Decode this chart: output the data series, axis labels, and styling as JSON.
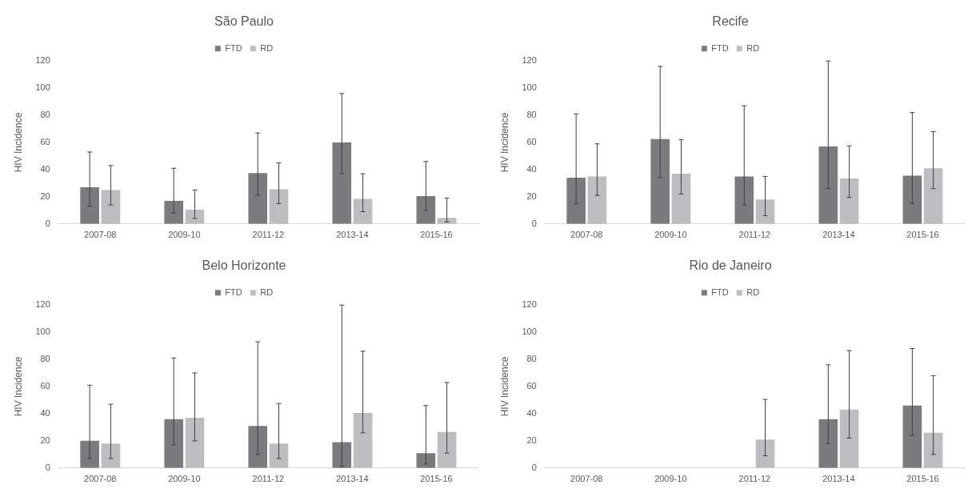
{
  "chart_data": [
    {
      "type": "bar",
      "title": "São Paulo",
      "ylabel": "HIV Incidence",
      "categories": [
        "2007-08",
        "2009-10",
        "2011-12",
        "2013-14",
        "2015-16"
      ],
      "ylim": [
        0,
        120
      ],
      "yticks": [
        0,
        20,
        40,
        60,
        80,
        100,
        120
      ],
      "legend": "top",
      "series": [
        {
          "name": "FTD",
          "color": "#7a7b7f",
          "values": [
            27,
            17,
            37.5,
            60,
            20.5
          ],
          "errors": [
            [
              13,
              53
            ],
            [
              8,
              41
            ],
            [
              21,
              67
            ],
            [
              37,
              96
            ],
            [
              10,
              46
            ]
          ]
        },
        {
          "name": "RD",
          "color": "#bcbdc0",
          "values": [
            25,
            10.5,
            25.5,
            18.5,
            4.5
          ],
          "errors": [
            [
              14,
              43
            ],
            [
              4,
              25
            ],
            [
              15,
              45
            ],
            [
              9,
              37
            ],
            [
              1.5,
              19
            ]
          ]
        }
      ]
    },
    {
      "type": "bar",
      "title": "Recife",
      "ylabel": "HIV Incidence",
      "categories": [
        "2007-08",
        "2009-10",
        "2011-12",
        "2013-14",
        "2015-16"
      ],
      "ylim": [
        0,
        120
      ],
      "yticks": [
        0,
        20,
        40,
        60,
        80,
        100,
        120
      ],
      "legend": "top",
      "series": [
        {
          "name": "FTD",
          "color": "#7a7b7f",
          "values": [
            34,
            62.5,
            35,
            57,
            35.5
          ],
          "errors": [
            [
              15,
              81
            ],
            [
              34,
              116
            ],
            [
              14,
              87
            ],
            [
              26,
              120
            ],
            [
              15,
              82
            ]
          ]
        },
        {
          "name": "RD",
          "color": "#bcbdc0",
          "values": [
            35,
            37,
            18,
            33.5,
            41
          ],
          "errors": [
            [
              21,
              59
            ],
            [
              22,
              62
            ],
            [
              6,
              35
            ],
            [
              19.5,
              57.5
            ],
            [
              26,
              68
            ]
          ]
        }
      ]
    },
    {
      "type": "bar",
      "title": "Belo Horizonte",
      "ylabel": "HIV Incidence",
      "categories": [
        "2007-08",
        "2009-10",
        "2011-12",
        "2013-14",
        "2015-16"
      ],
      "ylim": [
        0,
        120
      ],
      "yticks": [
        0,
        20,
        40,
        60,
        80,
        100,
        120
      ],
      "legend": "top",
      "series": [
        {
          "name": "FTD",
          "color": "#7a7b7f",
          "values": [
            20,
            36,
            31,
            19,
            11
          ],
          "errors": [
            [
              7,
              61
            ],
            [
              17,
              81
            ],
            [
              10,
              93
            ],
            [
              1,
              120
            ],
            [
              3,
              46
            ]
          ]
        },
        {
          "name": "RD",
          "color": "#bcbdc0",
          "values": [
            18,
            37,
            18,
            40.5,
            26.5
          ],
          "errors": [
            [
              7,
              47
            ],
            [
              20,
              70
            ],
            [
              7,
              47.5
            ],
            [
              26,
              86
            ],
            [
              11,
              63
            ]
          ]
        }
      ]
    },
    {
      "type": "bar",
      "title": "Rio de Janeiro",
      "ylabel": "HIV Incidence",
      "categories": [
        "2007-08",
        "2009-10",
        "2011-12",
        "2013-14",
        "2015-16"
      ],
      "ylim": [
        0,
        120
      ],
      "yticks": [
        0,
        20,
        40,
        60,
        80,
        100,
        120
      ],
      "legend": "top",
      "series": [
        {
          "name": "FTD",
          "color": "#7a7b7f",
          "values": [
            null,
            null,
            null,
            36,
            46
          ],
          "errors": [
            null,
            null,
            null,
            [
              18,
              76
            ],
            [
              24,
              88
            ]
          ]
        },
        {
          "name": "RD",
          "color": "#bcbdc0",
          "values": [
            null,
            null,
            21,
            43,
            26
          ],
          "errors": [
            null,
            null,
            [
              9,
              50.5
            ],
            [
              22,
              86.5
            ],
            [
              10,
              68
            ]
          ]
        }
      ]
    }
  ]
}
